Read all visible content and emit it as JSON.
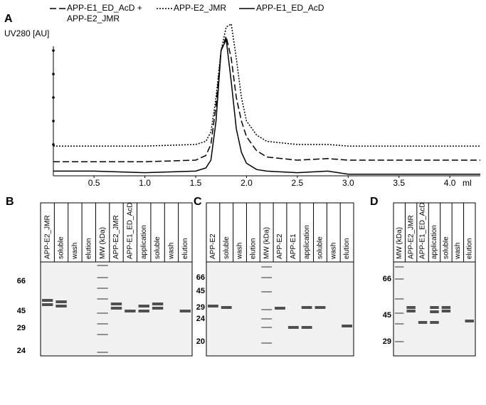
{
  "chart_data": {
    "type": "line",
    "panel": "A",
    "y_label": "UV280 [AU]",
    "x_label": "ml",
    "x": [
      0.1,
      0.5,
      1.0,
      1.5,
      1.6,
      1.65,
      1.7,
      1.75,
      1.8,
      1.85,
      1.9,
      1.95,
      2.0,
      2.1,
      2.2,
      2.5,
      2.8,
      3.0,
      3.5,
      4.0,
      4.3
    ],
    "series": [
      {
        "name": "APP-E1_ED_AcD + APP-E2_JMR",
        "color": "#000000",
        "dash": "dashed",
        "values": [
          0.09,
          0.09,
          0.09,
          0.1,
          0.13,
          0.2,
          0.45,
          0.8,
          0.89,
          0.75,
          0.5,
          0.35,
          0.25,
          0.16,
          0.12,
          0.1,
          0.11,
          0.1,
          0.1,
          0.1,
          0.1
        ]
      },
      {
        "name": "APP-E2_JMR",
        "color": "#000000",
        "dash": "dotted",
        "values": [
          0.19,
          0.19,
          0.19,
          0.2,
          0.22,
          0.28,
          0.5,
          0.8,
          0.95,
          0.97,
          0.75,
          0.5,
          0.35,
          0.26,
          0.22,
          0.2,
          0.2,
          0.19,
          0.19,
          0.19,
          0.19
        ]
      },
      {
        "name": "APP-E1_ED_AcD",
        "color": "#000000",
        "dash": "solid",
        "values": [
          0.03,
          0.03,
          0.02,
          0.03,
          0.05,
          0.1,
          0.35,
          0.8,
          0.87,
          0.6,
          0.3,
          0.15,
          0.08,
          0.04,
          0.03,
          0.02,
          0.03,
          0.01,
          0.01,
          0.01,
          0.01
        ]
      }
    ],
    "xlim": [
      0.1,
      4.3
    ],
    "xticks": [
      0.5,
      {
        "value": 1,
        "label": "1.0"
      },
      1.5,
      {
        "value": 2,
        "label": "2.0"
      },
      2.5,
      {
        "value": 3,
        "label": "3.0"
      },
      3.5,
      {
        "value": 4,
        "label": "4.0"
      }
    ],
    "ylim": [
      0,
      1
    ],
    "yticks": [
      0.2,
      0.35,
      0.5,
      0.65,
      0.8
    ]
  },
  "gels": [
    {
      "panel": "B",
      "lanes": [
        "APP-E2_JMR",
        "soluble",
        "wash",
        "elution",
        "MW (kDa)",
        "APP-E2_JMR",
        "APP-E1_ED_AcD",
        "application",
        "soluble",
        "wash",
        "elution"
      ],
      "markers": [
        "66",
        "45",
        "29",
        "24"
      ]
    },
    {
      "panel": "C",
      "lanes": [
        "APP-E2",
        "soluble",
        "wash",
        "elution",
        "MW (kDa)",
        "APP-E2",
        "APP-E1",
        "application",
        "soluble",
        "wash",
        "elution"
      ],
      "markers": [
        "66",
        "45",
        "29",
        "24",
        "20"
      ]
    },
    {
      "panel": "D",
      "lanes": [
        "MW (kDa)",
        "APP-E2_JMR",
        "APP-E1_ED_AcD",
        "application",
        "soluble",
        "wash",
        "elution"
      ],
      "markers": [
        "66",
        "45",
        "29"
      ]
    }
  ]
}
